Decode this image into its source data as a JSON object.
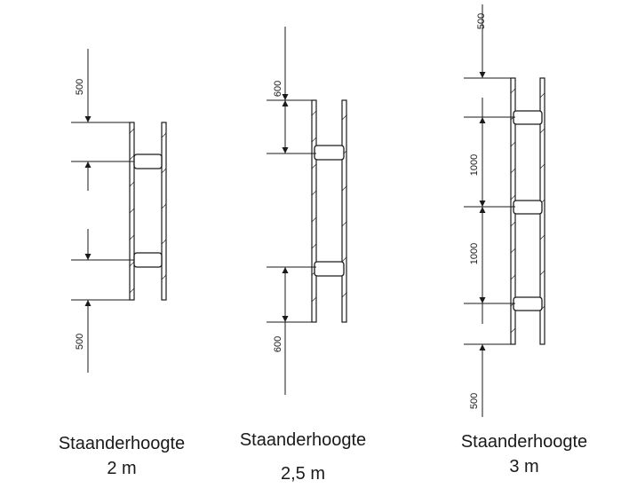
{
  "diagrams": [
    {
      "caption_title": "Staanderhoogte",
      "caption_height": "2 m",
      "dims": [
        "500",
        "500"
      ]
    },
    {
      "caption_title": "Staanderhoogte",
      "caption_height": "2,5 m",
      "dims": [
        "600",
        "600"
      ]
    },
    {
      "caption_title": "Staanderhoogte",
      "caption_height": "3 m",
      "dims": [
        "500",
        "1000",
        "1000",
        "500"
      ]
    }
  ]
}
